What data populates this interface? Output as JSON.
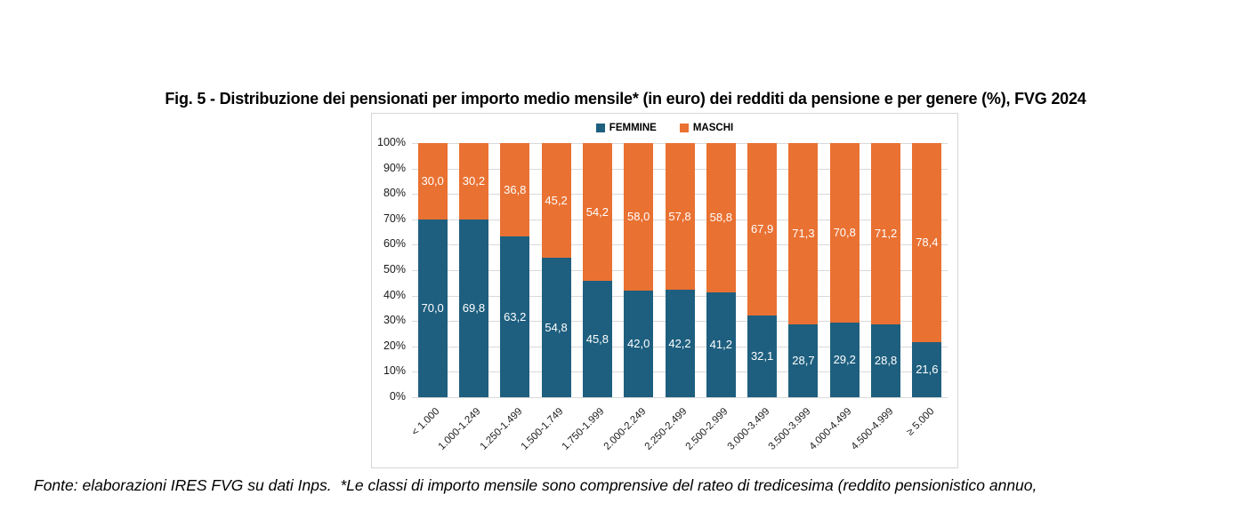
{
  "title": "Fig. 5 - Distribuzione dei pensionati per importo medio mensile* (in euro) dei redditi da pensione e per genere (%), FVG 2024",
  "footer": "Fonte: elaborazioni IRES FVG su dati Inps.  *Le classi di importo mensile sono comprensive del rateo di tredicesima (reddito pensionistico annuo,",
  "colors": {
    "femmine": "#1e5f7f",
    "maschi": "#e97132",
    "gridline": "#d9d9d9",
    "frame_border": "#d6d6d6",
    "segment_label_text": "#ffffff"
  },
  "chart_data": {
    "type": "bar",
    "stacked": true,
    "title": "Fig. 5 - Distribuzione dei pensionati per importo medio mensile* (in euro) dei redditi da pensione e per genere (%), FVG 2024",
    "categories": [
      "< 1.000",
      "1.000-1.249",
      "1.250-1.499",
      "1.500-1.749",
      "1.750-1.999",
      "2.000-2.249",
      "2.250-2.499",
      "2.500-2.999",
      "3.000-3.499",
      "3.500-3.999",
      "4.000-4.499",
      "4.500-4.999",
      "≥ 5.000"
    ],
    "series": [
      {
        "name": "FEMMINE",
        "color": "#1e5f7f",
        "values": [
          70.0,
          69.8,
          63.2,
          54.8,
          45.8,
          42.0,
          42.2,
          41.2,
          32.1,
          28.7,
          29.2,
          28.8,
          21.6
        ]
      },
      {
        "name": "MASCHI",
        "color": "#e97132",
        "values": [
          30.0,
          30.2,
          36.8,
          45.2,
          54.2,
          58.0,
          57.8,
          58.8,
          67.9,
          71.3,
          70.8,
          71.2,
          78.4
        ]
      }
    ],
    "xlabel": "",
    "ylabel": "",
    "ylim": [
      0,
      100
    ],
    "ytick_step": 10,
    "ytick_suffix": "%",
    "decimal_separator": ",",
    "grid": true,
    "legend_position": "top-center"
  }
}
